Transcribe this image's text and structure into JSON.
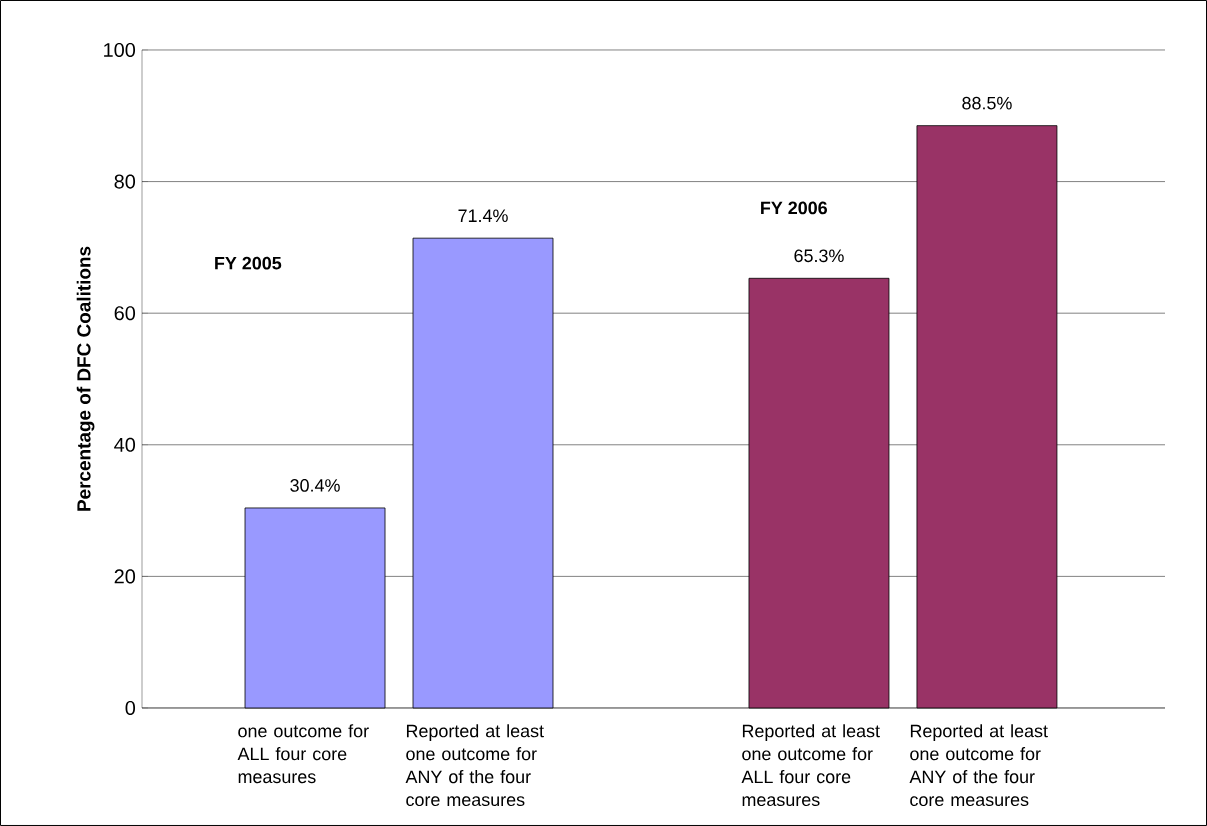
{
  "chart_data": {
    "type": "bar",
    "ylabel": "Percentage of DFC Coalitions",
    "categories": [
      "one outcome for ALL four core measures",
      "Reported at least one outcome for ANY of the four core measures",
      null,
      "Reported at least one outcome for ALL four core measures",
      "Reported at least one outcome for ANY of the four core measures"
    ],
    "values": [
      30.4,
      71.4,
      null,
      65.3,
      88.5
    ],
    "colors": [
      "#9999ff",
      "#9999ff",
      null,
      "#993366",
      "#993366"
    ],
    "value_labels": [
      "30.4%",
      "71.4%",
      null,
      "65.3%",
      "88.5%"
    ],
    "annotations": [
      "FY 2005",
      "FY 2006"
    ],
    "ylim": [
      0,
      100
    ],
    "yticks": [
      0,
      20,
      40,
      60,
      80,
      100
    ],
    "grid": "y"
  }
}
